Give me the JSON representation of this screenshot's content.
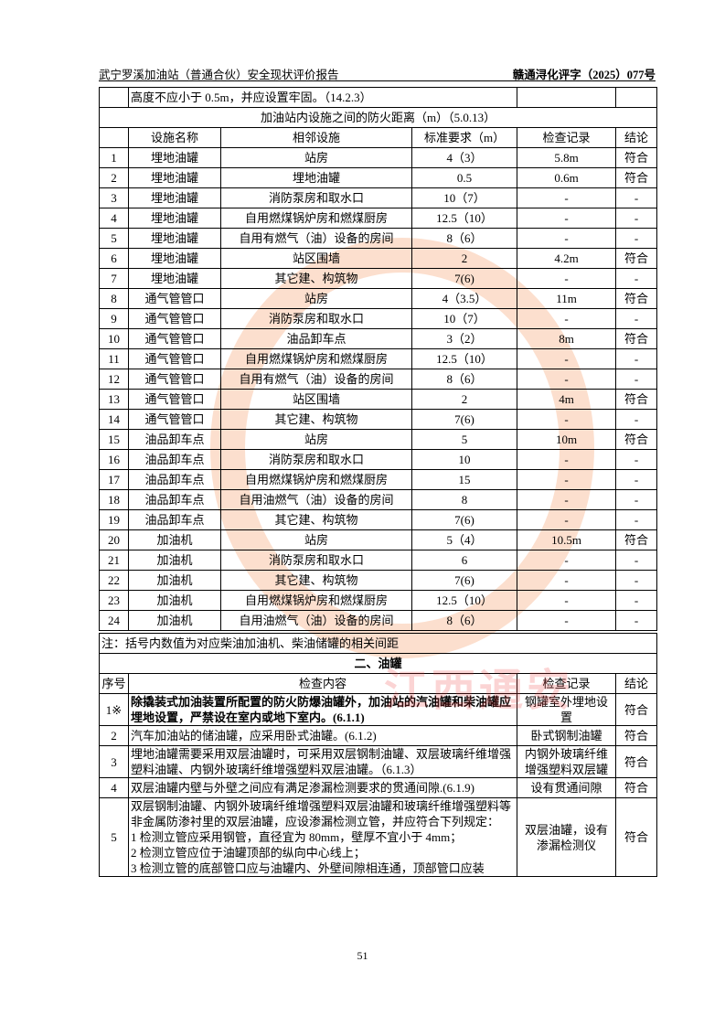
{
  "header": {
    "title": "武宁罗溪加油站（普通合伙）安全现状评价报告",
    "doc_no": "赣通浔化评字（2025）077号"
  },
  "top_row": {
    "text": "高度不应小于 0.5m，并应设置牢固。（14.2.3）"
  },
  "distance_section": {
    "title": "加油站内设施之间的防火距离（m）（5.0.13）",
    "columns": [
      "",
      "设施名称",
      "相邻设施",
      "标准要求（m）",
      "检查记录",
      "结论"
    ],
    "rows": [
      [
        "1",
        "埋地油罐",
        "站房",
        "4（3）",
        "5.8m",
        "符合"
      ],
      [
        "2",
        "埋地油罐",
        "埋地油罐",
        "0.5",
        "0.6m",
        "符合"
      ],
      [
        "3",
        "埋地油罐",
        "消防泵房和取水口",
        "10（7）",
        "-",
        "-"
      ],
      [
        "4",
        "埋地油罐",
        "自用燃煤锅炉房和燃煤厨房",
        "12.5（10）",
        "-",
        "-"
      ],
      [
        "5",
        "埋地油罐",
        "自用有燃气（油）设备的房间",
        "8（6）",
        "-",
        "-"
      ],
      [
        "6",
        "埋地油罐",
        "站区围墙",
        "2",
        "4.2m",
        "符合"
      ],
      [
        "7",
        "埋地油罐",
        "其它建、构筑物",
        "7(6)",
        "-",
        "-"
      ],
      [
        "8",
        "通气管管口",
        "站房",
        "4（3.5）",
        "11m",
        "符合"
      ],
      [
        "9",
        "通气管管口",
        "消防泵房和取水口",
        "10（7）",
        "-",
        "-"
      ],
      [
        "10",
        "通气管管口",
        "油品卸车点",
        "3（2）",
        "8m",
        "符合"
      ],
      [
        "11",
        "通气管管口",
        "自用燃煤锅炉房和燃煤厨房",
        "12.5（10）",
        "-",
        "-"
      ],
      [
        "12",
        "通气管管口",
        "自用有燃气（油）设备的房间",
        "8（6）",
        "-",
        "-"
      ],
      [
        "13",
        "通气管管口",
        "站区围墙",
        "2",
        "4m",
        "符合"
      ],
      [
        "14",
        "通气管管口",
        "其它建、构筑物",
        "7(6)",
        "-",
        "-"
      ],
      [
        "15",
        "油品卸车点",
        "站房",
        "5",
        "10m",
        "符合"
      ],
      [
        "16",
        "油品卸车点",
        "消防泵房和取水口",
        "10",
        "-",
        "-"
      ],
      [
        "17",
        "油品卸车点",
        "自用燃煤锅炉房和燃煤厨房",
        "15",
        "-",
        "-"
      ],
      [
        "18",
        "油品卸车点",
        "自用油燃气（油）设备的房间",
        "8",
        "-",
        "-"
      ],
      [
        "19",
        "油品卸车点",
        "其它建、构筑物",
        "7(6)",
        "-",
        "-"
      ],
      [
        "20",
        "加油机",
        "站房",
        "5（4）",
        "10.5m",
        "符合"
      ],
      [
        "21",
        "加油机",
        "消防泵房和取水口",
        "6",
        "-",
        "-"
      ],
      [
        "22",
        "加油机",
        "其它建、构筑物",
        "7(6)",
        "-",
        "-"
      ],
      [
        "23",
        "加油机",
        "自用燃煤锅炉房和燃煤厨房",
        "12.5（10）",
        "-",
        "-"
      ],
      [
        "24",
        "加油机",
        "自用油燃气（油）设备的房间",
        "8（6）",
        "-",
        "-"
      ]
    ],
    "note": "注：括号内数值为对应柴油加油机、柴油储罐的相关间距"
  },
  "tank_section": {
    "title": "二、油罐",
    "columns": [
      "序号",
      "检查内容",
      "检查记录",
      "结论"
    ],
    "rows": [
      {
        "no": "1※",
        "content": "除撬装式加油装置所配置的防火防爆油罐外，加油站的汽油罐和柴油罐应埋地设置，严禁设在室内或地下室内。(6.1.1)",
        "record": "钢罐室外埋地设置",
        "result": "符合",
        "bold": true
      },
      {
        "no": "2",
        "content": "汽车加油站的储油罐，应采用卧式油罐。(6.1.2)",
        "record": "卧式钢制油罐",
        "result": "符合"
      },
      {
        "no": "3",
        "content": "埋地油罐需要采用双层油罐时，可采用双层钢制油罐、双层玻璃纤维增强塑料油罐、内钢外玻璃纤维增强塑料双层油罐。（6.1.3）",
        "record": "内钢外玻璃纤维增强塑料双层罐",
        "result": "符合"
      },
      {
        "no": "4",
        "content": "双层油罐内壁与外壁之间应有满足渗漏检测要求的贯通间隙.(6.1.9)",
        "record": "设有贯通间隙",
        "result": "符合"
      },
      {
        "no": "5",
        "content_lines": [
          "双层钢制油罐、内钢外玻璃纤维增强塑料双层油罐和玻璃纤维增强塑料等非金属防渗衬里的双层油罐，应设渗漏检测立管，并应符合下列规定：",
          "1 检测立管应采用钢管，直径宜为 80mm，壁厚不宜小于 4mm；",
          "2 检测立管应位于油罐顶部的纵向中心线上；",
          "3 检测立管的底部管口应与油罐内、外壁间隙相连通，顶部管口应装"
        ],
        "record": "双层油罐，设有渗漏检测仪",
        "result": "符合"
      }
    ]
  },
  "page_number": "51",
  "watermark": {
    "text": "江西通安",
    "color": "#f58c50"
  }
}
